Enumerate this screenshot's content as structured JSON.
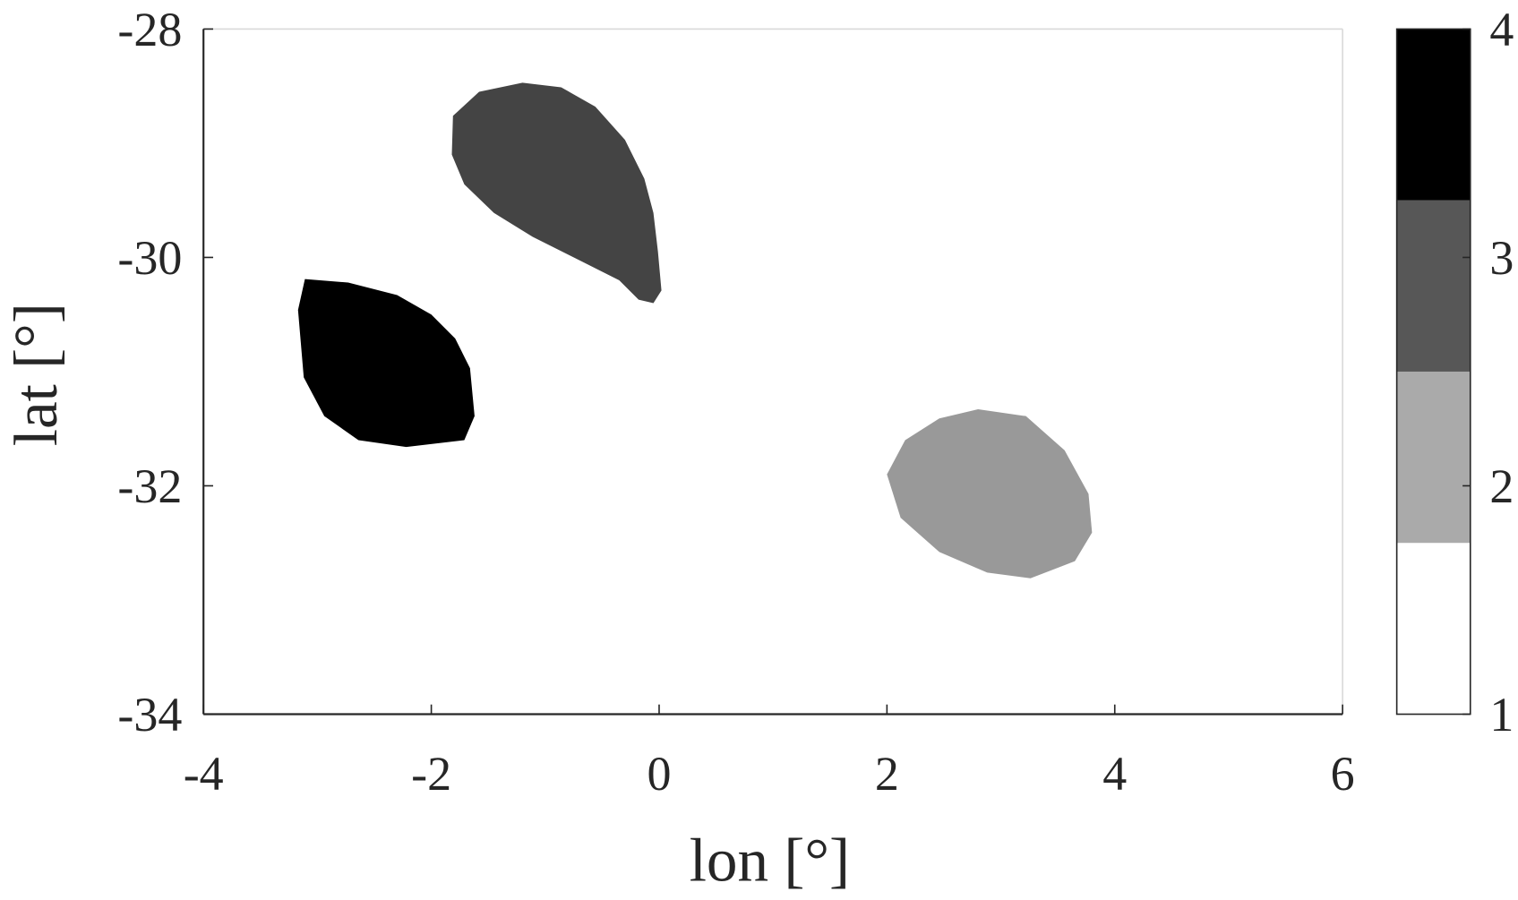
{
  "chart_data": {
    "type": "heatmap",
    "title": "",
    "xlabel": "lon [°]",
    "ylabel": "lat [°]",
    "xlim": [
      -4,
      6
    ],
    "ylim": [
      -34,
      -28
    ],
    "xticks": [
      -4,
      -2,
      0,
      2,
      4,
      6
    ],
    "xtick_labels": [
      "-4",
      "-2",
      "0",
      "2",
      "4",
      "6"
    ],
    "yticks": [
      -28,
      -30,
      -32,
      -34
    ],
    "ytick_labels": [
      "-28",
      "-30",
      "-32",
      "-34"
    ],
    "grid": false,
    "background_value": 1,
    "regions": [
      {
        "value": 4,
        "color": "#000000",
        "boundary_lon_lat": [
          [
            -3.11,
            -30.19
          ],
          [
            -2.73,
            -30.22
          ],
          [
            -2.3,
            -30.33
          ],
          [
            -2.0,
            -30.5
          ],
          [
            -1.79,
            -30.71
          ],
          [
            -1.66,
            -30.97
          ],
          [
            -1.62,
            -31.39
          ],
          [
            -1.71,
            -31.6
          ],
          [
            -2.22,
            -31.66
          ],
          [
            -2.64,
            -31.6
          ],
          [
            -2.94,
            -31.39
          ],
          [
            -3.12,
            -31.05
          ],
          [
            -3.17,
            -30.46
          ]
        ]
      },
      {
        "value": 3,
        "color": "#444444",
        "boundary_lon_lat": [
          [
            -1.2,
            -28.47
          ],
          [
            -0.86,
            -28.51
          ],
          [
            -0.56,
            -28.68
          ],
          [
            -0.3,
            -28.97
          ],
          [
            -0.13,
            -29.31
          ],
          [
            -0.05,
            -29.61
          ],
          [
            -0.01,
            -29.95
          ],
          [
            0.02,
            -30.29
          ],
          [
            -0.05,
            -30.4
          ],
          [
            -0.18,
            -30.37
          ],
          [
            -0.35,
            -30.2
          ],
          [
            -0.69,
            -30.03
          ],
          [
            -1.11,
            -29.82
          ],
          [
            -1.45,
            -29.61
          ],
          [
            -1.71,
            -29.36
          ],
          [
            -1.82,
            -29.1
          ],
          [
            -1.81,
            -28.76
          ],
          [
            -1.58,
            -28.55
          ]
        ]
      },
      {
        "value": 2,
        "color": "#999999",
        "boundary_lon_lat": [
          [
            2.8,
            -31.33
          ],
          [
            3.22,
            -31.39
          ],
          [
            3.56,
            -31.69
          ],
          [
            3.77,
            -32.07
          ],
          [
            3.8,
            -32.41
          ],
          [
            3.65,
            -32.66
          ],
          [
            3.26,
            -32.81
          ],
          [
            2.88,
            -32.76
          ],
          [
            2.46,
            -32.58
          ],
          [
            2.12,
            -32.28
          ],
          [
            2.0,
            -31.9
          ],
          [
            2.16,
            -31.6
          ],
          [
            2.46,
            -31.41
          ]
        ]
      }
    ],
    "colorbar": {
      "location": "right",
      "clim": [
        1,
        4
      ],
      "ticks": [
        1,
        2,
        3,
        4
      ],
      "tick_labels": [
        "1",
        "2",
        "3",
        "4"
      ],
      "colors": [
        "#ffffff",
        "#aaaaaa",
        "#575757",
        "#000000"
      ]
    }
  }
}
